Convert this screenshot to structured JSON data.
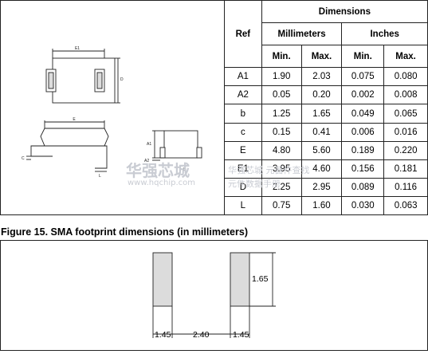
{
  "package_drawing": {
    "labels": {
      "e1": "E1",
      "d": "D",
      "e": "E",
      "c": "C",
      "l": "L",
      "a1": "A1",
      "a2": "A2",
      "b": "b"
    }
  },
  "table": {
    "header": {
      "ref": "Ref",
      "dimensions": "Dimensions",
      "millimeters": "Millimeters",
      "inches": "Inches",
      "min": "Min.",
      "max": "Max."
    },
    "rows": [
      {
        "ref": "A1",
        "mm_min": "1.90",
        "mm_max": "2.03",
        "in_min": "0.075",
        "in_max": "0.080"
      },
      {
        "ref": "A2",
        "mm_min": "0.05",
        "mm_max": "0.20",
        "in_min": "0.002",
        "in_max": "0.008"
      },
      {
        "ref": "b",
        "mm_min": "1.25",
        "mm_max": "1.65",
        "in_min": "0.049",
        "in_max": "0.065"
      },
      {
        "ref": "c",
        "mm_min": "0.15",
        "mm_max": "0.41",
        "in_min": "0.006",
        "in_max": "0.016"
      },
      {
        "ref": "E",
        "mm_min": "4.80",
        "mm_max": "5.60",
        "in_min": "0.189",
        "in_max": "0.220"
      },
      {
        "ref": "E1",
        "mm_min": "3.95",
        "mm_max": "4.60",
        "in_min": "0.156",
        "in_max": "0.181"
      },
      {
        "ref": "D",
        "mm_min": "2.25",
        "mm_max": "2.95",
        "in_min": "0.089",
        "in_max": "0.116"
      },
      {
        "ref": "L",
        "mm_min": "0.75",
        "mm_max": "1.60",
        "in_min": "0.030",
        "in_max": "0.063"
      }
    ]
  },
  "figure_caption": "Figure 15.   SMA footprint dimensions (in millimeters)",
  "footprint": {
    "pad_height": "1.65",
    "pad_width_left": "1.45",
    "gap": "2.40",
    "pad_width_right": "1.45"
  },
  "watermark": {
    "logo": "华强芯城",
    "url": "www.hqchip.com",
    "side": "华强芯城 元器件查找",
    "side2": "元件数据手册"
  },
  "colors": {
    "pad_fill": "#dcdcdc",
    "line": "#222222",
    "watermark": "#c9ccd3"
  }
}
